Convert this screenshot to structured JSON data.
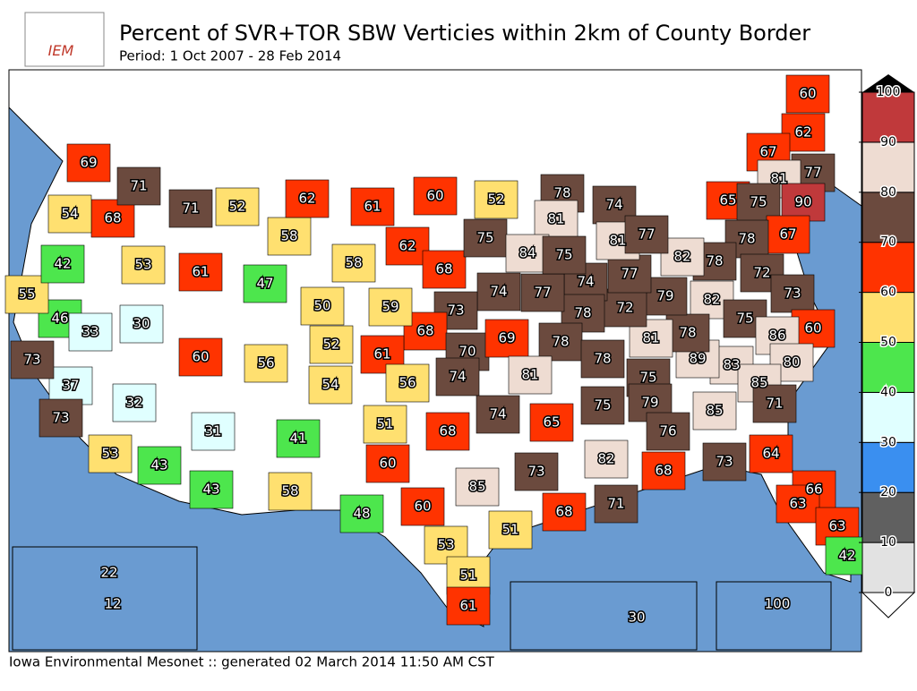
{
  "header": {
    "title": "Percent of SVR+TOR SBW Verticies within 2km of County Border",
    "period": "Period: 1 Oct 2007 - 28 Feb 2014",
    "logo_text": "IEM"
  },
  "footer": "Iowa Environmental Mesonet :: generated 02 March 2014 11:50 AM CST",
  "colorbar": {
    "ticks": [
      0,
      10,
      20,
      30,
      40,
      50,
      60,
      70,
      80,
      90,
      100
    ],
    "colors": [
      "#e2e2e2",
      "#606060",
      "#3a8ff0",
      "#e0ffff",
      "#4de64d",
      "#ffe070",
      "#ff3300",
      "#6b4a3e",
      "#eedcd2",
      "#c0393b"
    ]
  },
  "labels": [
    60,
    62,
    67,
    77,
    81,
    90,
    65,
    75,
    67,
    78,
    78,
    82,
    72,
    73,
    82,
    75,
    60,
    86,
    80,
    83,
    85,
    71,
    89,
    78,
    81,
    79,
    72,
    77,
    74,
    78,
    77,
    74,
    73,
    68,
    70,
    69,
    61,
    74,
    56,
    78,
    81,
    78,
    75,
    79,
    75,
    85,
    76,
    73,
    64,
    66,
    63,
    63,
    42,
    68,
    71,
    82,
    65,
    74,
    68,
    73,
    68,
    85,
    60,
    51,
    60,
    53,
    51,
    51,
    61,
    48,
    41,
    58,
    31,
    43,
    43,
    53,
    32,
    37,
    73,
    73,
    46,
    55,
    42,
    33,
    30,
    60,
    56,
    52,
    54,
    59,
    50,
    47,
    58,
    62,
    68,
    61,
    53,
    68,
    54,
    71,
    71,
    69,
    52,
    58,
    62,
    61,
    60,
    52,
    75,
    78,
    81,
    84,
    75,
    74,
    81,
    77,
    22,
    12,
    30,
    100
  ]
}
